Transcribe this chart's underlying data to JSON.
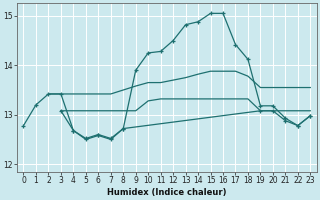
{
  "xlabel": "Humidex (Indice chaleur)",
  "xlim": [
    -0.5,
    23.5
  ],
  "ylim": [
    11.85,
    15.25
  ],
  "yticks": [
    12,
    13,
    14,
    15
  ],
  "xticks": [
    0,
    1,
    2,
    3,
    4,
    5,
    6,
    7,
    8,
    9,
    10,
    11,
    12,
    13,
    14,
    15,
    16,
    17,
    18,
    19,
    20,
    21,
    22,
    23
  ],
  "bg_color": "#cce9ee",
  "line_color": "#1e7070",
  "grid_color": "#ffffff",
  "curve1": {
    "x": [
      0,
      1,
      2,
      3,
      4,
      5,
      6,
      7,
      8,
      9,
      10,
      11,
      12,
      13,
      14,
      15,
      16,
      17,
      18,
      19,
      20,
      21,
      22,
      23
    ],
    "y": [
      12.78,
      13.2,
      13.42,
      13.42,
      12.68,
      12.52,
      12.6,
      12.52,
      12.72,
      13.9,
      14.25,
      14.28,
      14.5,
      14.82,
      14.88,
      15.05,
      15.05,
      14.42,
      14.12,
      13.18,
      13.18,
      12.93,
      12.78,
      12.98
    ]
  },
  "curve2": {
    "x": [
      2,
      3,
      4,
      5,
      6,
      7,
      8,
      9,
      10,
      11,
      12,
      13,
      14,
      15,
      16,
      17,
      18,
      19,
      20,
      21,
      22,
      23
    ],
    "y": [
      13.42,
      13.42,
      13.42,
      13.42,
      13.42,
      13.42,
      13.5,
      13.58,
      13.65,
      13.65,
      13.7,
      13.75,
      13.82,
      13.88,
      13.88,
      13.88,
      13.78,
      13.55,
      13.55,
      13.55,
      13.55,
      13.55
    ]
  },
  "curve3": {
    "x": [
      3,
      4,
      5,
      6,
      7,
      8,
      9,
      10,
      11,
      12,
      13,
      14,
      15,
      16,
      17,
      18,
      19,
      20,
      21,
      22,
      23
    ],
    "y": [
      13.08,
      13.08,
      13.08,
      13.08,
      13.08,
      13.08,
      13.08,
      13.28,
      13.32,
      13.32,
      13.32,
      13.32,
      13.32,
      13.32,
      13.32,
      13.32,
      13.08,
      13.08,
      13.08,
      13.08,
      13.08
    ]
  },
  "curve4": {
    "x": [
      3,
      4,
      5,
      6,
      7,
      8,
      19,
      20,
      21,
      22,
      23
    ],
    "y": [
      13.08,
      12.68,
      12.5,
      12.58,
      12.5,
      12.72,
      13.08,
      13.08,
      12.88,
      12.78,
      12.98
    ]
  }
}
